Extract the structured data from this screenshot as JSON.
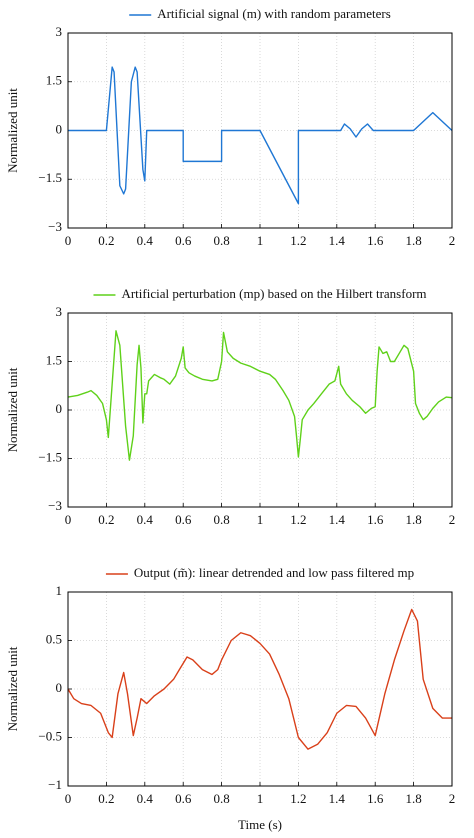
{
  "chart_data": [
    {
      "type": "line",
      "ylabel": "Normalized unit",
      "xlim": [
        0,
        2
      ],
      "ylim": [
        -3,
        3
      ],
      "xticks": [
        0,
        0.2,
        0.4,
        0.6,
        0.8,
        1,
        1.2,
        1.4,
        1.6,
        1.8,
        2
      ],
      "yticks": [
        {
          "value": -3,
          "label": "−3"
        },
        {
          "value": -1.5,
          "label": "−1.5"
        },
        0,
        1.5,
        3
      ],
      "grid": true,
      "legend": "top",
      "x": [
        0,
        0.2,
        0.23,
        0.24,
        0.27,
        0.29,
        0.3,
        0.33,
        0.35,
        0.36,
        0.39,
        0.4,
        0.41,
        0.6,
        0.6,
        0.8,
        0.8,
        1.0,
        1.2,
        1.2,
        1.42,
        1.44,
        1.47,
        1.5,
        1.53,
        1.56,
        1.59,
        1.8,
        1.9,
        2.0
      ],
      "series": [
        {
          "name": "Artificial signal (m) with random parameters",
          "color": "#1f77d4",
          "values": [
            0,
            0,
            1.95,
            1.8,
            -1.7,
            -1.95,
            -1.8,
            1.5,
            1.95,
            1.8,
            -1.2,
            -1.55,
            0,
            0,
            -0.95,
            -0.95,
            0,
            0,
            -2.25,
            0,
            0,
            0.2,
            0.05,
            -0.2,
            0.05,
            0.2,
            0,
            0,
            0.55,
            0
          ]
        }
      ]
    },
    {
      "type": "line",
      "ylabel": "Normalized unit",
      "xlim": [
        0,
        2
      ],
      "ylim": [
        -3,
        3
      ],
      "xticks": [
        0,
        0.2,
        0.4,
        0.6,
        0.8,
        1,
        1.2,
        1.4,
        1.6,
        1.8,
        2
      ],
      "yticks": [
        {
          "value": -3,
          "label": "−3"
        },
        {
          "value": -1.5,
          "label": "−1.5"
        },
        0,
        1.5,
        3
      ],
      "grid": true,
      "legend": "top",
      "x": [
        0,
        0.05,
        0.1,
        0.12,
        0.15,
        0.18,
        0.2,
        0.21,
        0.23,
        0.25,
        0.27,
        0.3,
        0.32,
        0.34,
        0.36,
        0.37,
        0.38,
        0.39,
        0.4,
        0.41,
        0.42,
        0.45,
        0.48,
        0.5,
        0.53,
        0.56,
        0.59,
        0.6,
        0.61,
        0.63,
        0.66,
        0.7,
        0.75,
        0.78,
        0.8,
        0.81,
        0.83,
        0.86,
        0.9,
        0.95,
        1.0,
        1.05,
        1.08,
        1.12,
        1.15,
        1.18,
        1.19,
        1.2,
        1.21,
        1.22,
        1.25,
        1.28,
        1.32,
        1.36,
        1.39,
        1.41,
        1.42,
        1.45,
        1.48,
        1.52,
        1.55,
        1.58,
        1.6,
        1.61,
        1.62,
        1.64,
        1.66,
        1.68,
        1.7,
        1.73,
        1.75,
        1.77,
        1.8,
        1.81,
        1.83,
        1.85,
        1.87,
        1.9,
        1.93,
        1.97,
        2.0
      ],
      "series": [
        {
          "name": "Artificial perturbation (mp) based on the Hilbert transform",
          "color": "#5fd11a",
          "values": [
            0.4,
            0.45,
            0.55,
            0.6,
            0.45,
            0.2,
            -0.3,
            -0.85,
            0.8,
            2.45,
            2.0,
            -0.5,
            -1.55,
            -0.8,
            1.4,
            2.0,
            1.3,
            -0.4,
            0.5,
            0.5,
            0.9,
            1.1,
            1.0,
            0.95,
            0.8,
            1.05,
            1.6,
            1.95,
            1.3,
            1.15,
            1.05,
            0.95,
            0.9,
            0.95,
            1.5,
            2.4,
            1.8,
            1.6,
            1.45,
            1.35,
            1.2,
            1.1,
            0.95,
            0.6,
            0.3,
            -0.2,
            -0.8,
            -1.45,
            -0.9,
            -0.3,
            0,
            0.2,
            0.5,
            0.8,
            0.9,
            1.35,
            0.8,
            0.5,
            0.3,
            0.1,
            -0.1,
            0.05,
            0.1,
            1.2,
            1.95,
            1.75,
            1.8,
            1.5,
            1.5,
            1.8,
            2.0,
            1.9,
            1.2,
            0.2,
            -0.1,
            -0.3,
            -0.2,
            0.05,
            0.25,
            0.4,
            0.38
          ]
        }
      ]
    },
    {
      "type": "line",
      "ylabel": "Normalized unit",
      "xlabel": "Time (s)",
      "xlim": [
        0,
        2
      ],
      "ylim": [
        -1,
        1
      ],
      "xticks": [
        0,
        0.2,
        0.4,
        0.6,
        0.8,
        1,
        1.2,
        1.4,
        1.6,
        1.8,
        2
      ],
      "yticks": [
        {
          "value": -1,
          "label": "−1"
        },
        {
          "value": -0.5,
          "label": "−0.5"
        },
        0,
        0.5,
        1
      ],
      "grid": true,
      "legend": "top",
      "x": [
        0,
        0.03,
        0.07,
        0.12,
        0.17,
        0.21,
        0.23,
        0.26,
        0.29,
        0.31,
        0.34,
        0.36,
        0.38,
        0.41,
        0.45,
        0.5,
        0.55,
        0.58,
        0.62,
        0.65,
        0.7,
        0.75,
        0.78,
        0.8,
        0.85,
        0.9,
        0.95,
        1.0,
        1.05,
        1.1,
        1.15,
        1.2,
        1.25,
        1.3,
        1.35,
        1.4,
        1.45,
        1.5,
        1.55,
        1.6,
        1.65,
        1.7,
        1.75,
        1.79,
        1.82,
        1.85,
        1.9,
        1.95,
        2.0
      ],
      "series": [
        {
          "name": "Output (m̃): linear detrended and low pass filtered mp",
          "color": "#d9401a",
          "values": [
            0,
            -0.1,
            -0.15,
            -0.17,
            -0.25,
            -0.45,
            -0.5,
            -0.05,
            0.17,
            -0.05,
            -0.48,
            -0.3,
            -0.1,
            -0.15,
            -0.07,
            0,
            0.1,
            0.2,
            0.33,
            0.3,
            0.2,
            0.15,
            0.2,
            0.3,
            0.5,
            0.58,
            0.55,
            0.47,
            0.36,
            0.15,
            -0.1,
            -0.5,
            -0.62,
            -0.57,
            -0.45,
            -0.25,
            -0.17,
            -0.18,
            -0.3,
            -0.48,
            -0.05,
            0.3,
            0.6,
            0.82,
            0.7,
            0.1,
            -0.2,
            -0.3,
            -0.3
          ]
        }
      ]
    }
  ]
}
